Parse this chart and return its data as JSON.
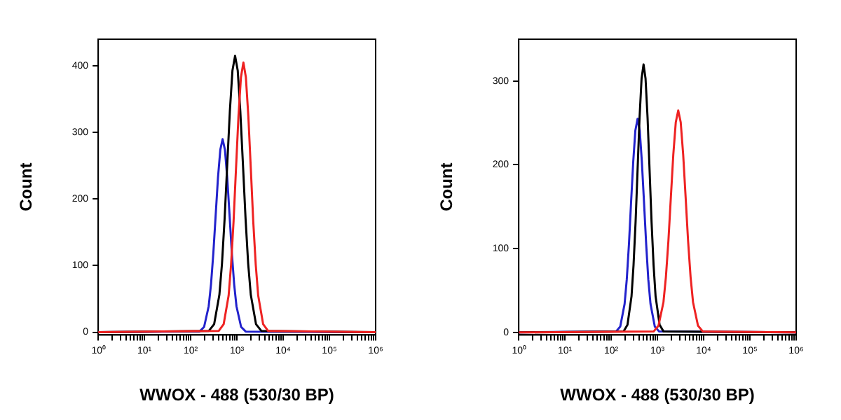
{
  "chart_data": [
    {
      "type": "line",
      "xlabel": "WWOX - 488 (530/30 BP)",
      "ylabel": "Count",
      "log": "x",
      "grid": false,
      "legend": false,
      "marker": "none",
      "line_style": "solid",
      "xlim": [
        1,
        1000000
      ],
      "ylim": [
        -4,
        440
      ],
      "xticks": [
        {
          "value": 1,
          "label": "10⁰"
        },
        {
          "value": 2,
          "label": null
        },
        {
          "value": 3,
          "label": null
        },
        {
          "value": 4,
          "label": null
        },
        {
          "value": 5,
          "label": null
        },
        {
          "value": 6,
          "label": null
        },
        {
          "value": 7,
          "label": null
        },
        {
          "value": 8,
          "label": null
        },
        {
          "value": 9,
          "label": null
        },
        {
          "value": 10,
          "label": "10¹"
        },
        {
          "value": 20,
          "label": null
        },
        {
          "value": 30,
          "label": null
        },
        {
          "value": 40,
          "label": null
        },
        {
          "value": 50,
          "label": null
        },
        {
          "value": 60,
          "label": null
        },
        {
          "value": 70,
          "label": null
        },
        {
          "value": 80,
          "label": null
        },
        {
          "value": 90,
          "label": null
        },
        {
          "value": 100,
          "label": "10²"
        },
        {
          "value": 200,
          "label": null
        },
        {
          "value": 300,
          "label": null
        },
        {
          "value": 400,
          "label": null
        },
        {
          "value": 500,
          "label": null
        },
        {
          "value": 600,
          "label": null
        },
        {
          "value": 700,
          "label": null
        },
        {
          "value": 800,
          "label": null
        },
        {
          "value": 900,
          "label": null
        },
        {
          "value": 1000,
          "label": "10³"
        },
        {
          "value": 2000,
          "label": null
        },
        {
          "value": 3000,
          "label": null
        },
        {
          "value": 4000,
          "label": null
        },
        {
          "value": 5000,
          "label": null
        },
        {
          "value": 6000,
          "label": null
        },
        {
          "value": 7000,
          "label": null
        },
        {
          "value": 8000,
          "label": null
        },
        {
          "value": 9000,
          "label": null
        },
        {
          "value": 10000,
          "label": "10⁴"
        },
        {
          "value": 20000,
          "label": null
        },
        {
          "value": 30000,
          "label": null
        },
        {
          "value": 40000,
          "label": null
        },
        {
          "value": 50000,
          "label": null
        },
        {
          "value": 60000,
          "label": null
        },
        {
          "value": 70000,
          "label": null
        },
        {
          "value": 80000,
          "label": null
        },
        {
          "value": 90000,
          "label": null
        },
        {
          "value": 100000,
          "label": "10⁵"
        },
        {
          "value": 200000,
          "label": null
        },
        {
          "value": 300000,
          "label": null
        },
        {
          "value": 400000,
          "label": null
        },
        {
          "value": 500000,
          "label": null
        },
        {
          "value": 600000,
          "label": null
        },
        {
          "value": 700000,
          "label": null
        },
        {
          "value": 800000,
          "label": null
        },
        {
          "value": 900000,
          "label": null
        },
        {
          "value": 1000000,
          "label": "10⁶"
        }
      ],
      "yticks": [
        0,
        100,
        200,
        300,
        400
      ],
      "series": [
        {
          "color": "#ee2222",
          "x": [
            1,
            405,
            516,
            661,
            746,
            845,
            955,
            1079,
            1222,
            1380,
            1560,
            1766,
            1995,
            2254,
            2553,
            2884,
            3690,
            4710,
            1000000
          ],
          "values": [
            0,
            2,
            12,
            55,
            101,
            166,
            246,
            324,
            383,
            405,
            383,
            324,
            246,
            166,
            101,
            55,
            12,
            2,
            0
          ]
        },
        {
          "color": "#000000",
          "x": [
            1,
            247,
            321,
            417,
            475,
            541,
            617,
            703,
            800,
            912,
            1040,
            1183,
            1349,
            1538,
            1750,
            1995,
            2588,
            3365,
            1000000
          ],
          "values": [
            0,
            2,
            12,
            56,
            103,
            170,
            252,
            332,
            393,
            415,
            393,
            332,
            252,
            170,
            103,
            56,
            12,
            2,
            0
          ]
        },
        {
          "color": "#2222cc",
          "x": [
            1,
            155,
            195,
            245,
            275,
            309,
            347,
            389,
            437,
            490,
            550,
            617,
            692,
            776,
            871,
            977,
            1230,
            1549,
            1000000
          ],
          "values": [
            0,
            1,
            8,
            39,
            72,
            119,
            176,
            232,
            274,
            290,
            274,
            232,
            176,
            119,
            72,
            39,
            8,
            1,
            0
          ]
        }
      ]
    },
    {
      "type": "line",
      "xlabel": "WWOX - 488 (530/30 BP)",
      "ylabel": "Count",
      "log": "x",
      "grid": false,
      "legend": false,
      "marker": "none",
      "line_style": "solid",
      "xlim": [
        1,
        1000000
      ],
      "ylim": [
        -3,
        350
      ],
      "xticks": [
        {
          "value": 1,
          "label": "10⁰"
        },
        {
          "value": 2,
          "label": null
        },
        {
          "value": 3,
          "label": null
        },
        {
          "value": 4,
          "label": null
        },
        {
          "value": 5,
          "label": null
        },
        {
          "value": 6,
          "label": null
        },
        {
          "value": 7,
          "label": null
        },
        {
          "value": 8,
          "label": null
        },
        {
          "value": 9,
          "label": null
        },
        {
          "value": 10,
          "label": "10¹"
        },
        {
          "value": 20,
          "label": null
        },
        {
          "value": 30,
          "label": null
        },
        {
          "value": 40,
          "label": null
        },
        {
          "value": 50,
          "label": null
        },
        {
          "value": 60,
          "label": null
        },
        {
          "value": 70,
          "label": null
        },
        {
          "value": 80,
          "label": null
        },
        {
          "value": 90,
          "label": null
        },
        {
          "value": 100,
          "label": "10²"
        },
        {
          "value": 200,
          "label": null
        },
        {
          "value": 300,
          "label": null
        },
        {
          "value": 400,
          "label": null
        },
        {
          "value": 500,
          "label": null
        },
        {
          "value": 600,
          "label": null
        },
        {
          "value": 700,
          "label": null
        },
        {
          "value": 800,
          "label": null
        },
        {
          "value": 900,
          "label": null
        },
        {
          "value": 1000,
          "label": "10³"
        },
        {
          "value": 2000,
          "label": null
        },
        {
          "value": 3000,
          "label": null
        },
        {
          "value": 4000,
          "label": null
        },
        {
          "value": 5000,
          "label": null
        },
        {
          "value": 6000,
          "label": null
        },
        {
          "value": 7000,
          "label": null
        },
        {
          "value": 8000,
          "label": null
        },
        {
          "value": 9000,
          "label": null
        },
        {
          "value": 10000,
          "label": "10⁴"
        },
        {
          "value": 20000,
          "label": null
        },
        {
          "value": 30000,
          "label": null
        },
        {
          "value": 40000,
          "label": null
        },
        {
          "value": 50000,
          "label": null
        },
        {
          "value": 60000,
          "label": null
        },
        {
          "value": 70000,
          "label": null
        },
        {
          "value": 80000,
          "label": null
        },
        {
          "value": 90000,
          "label": null
        },
        {
          "value": 100000,
          "label": "10⁵"
        },
        {
          "value": 200000,
          "label": null
        },
        {
          "value": 300000,
          "label": null
        },
        {
          "value": 400000,
          "label": null
        },
        {
          "value": 500000,
          "label": null
        },
        {
          "value": 600000,
          "label": null
        },
        {
          "value": 700000,
          "label": null
        },
        {
          "value": 800000,
          "label": null
        },
        {
          "value": 900000,
          "label": null
        },
        {
          "value": 1000000,
          "label": "10⁶"
        }
      ],
      "yticks": [
        0,
        100,
        200,
        300
      ],
      "series": [
        {
          "color": "#ee2222",
          "x": [
            1,
            826,
            1054,
            1349,
            1524,
            1726,
            1950,
            2203,
            2495,
            2818,
            3184,
            3606,
            4074,
            4603,
            5212,
            5888,
            7534,
            9616,
            1000000
          ],
          "values": [
            0,
            1,
            8,
            36,
            66,
            109,
            161,
            212,
            251,
            265,
            251,
            212,
            161,
            109,
            66,
            36,
            8,
            1,
            0
          ]
        },
        {
          "color": "#000000",
          "x": [
            1,
            185,
            225,
            275,
            304,
            337,
            372,
            410,
            454,
            501,
            553,
            612,
            676,
            746,
            826,
            912,
            1114,
            1358,
            1000000
          ],
          "values": [
            0,
            1,
            9,
            43,
            80,
            132,
            194,
            256,
            303,
            320,
            303,
            256,
            194,
            132,
            80,
            43,
            9,
            1,
            0
          ]
        },
        {
          "color": "#2222cc",
          "x": [
            1,
            127,
            157,
            195,
            217,
            242,
            269,
            300,
            333,
            372,
            414,
            460,
            513,
            571,
            635,
            708,
            877,
            1089,
            1000000
          ],
          "values": [
            0,
            1,
            7,
            34,
            63,
            105,
            155,
            204,
            241,
            255,
            241,
            204,
            155,
            105,
            63,
            34,
            7,
            1,
            0
          ]
        }
      ]
    }
  ]
}
